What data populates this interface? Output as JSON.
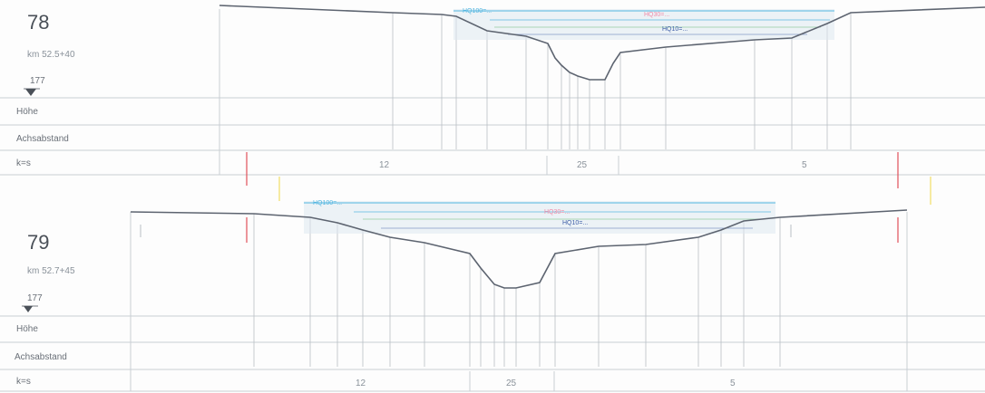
{
  "sections": [
    {
      "number": "78",
      "km": "km 52.5+40",
      "ref_level": "177",
      "row_labels": {
        "height": "Höhe",
        "distance": "Achsabstand",
        "k": "k=s"
      },
      "k_values": [
        "12",
        "25",
        "5"
      ],
      "hw_labels": {
        "hq100": "HQ100=...",
        "hq30": "HQ30=...",
        "hq10": "HQ10=..."
      }
    },
    {
      "number": "79",
      "km": "km 52.7+45",
      "ref_level": "177",
      "row_labels": {
        "height": "Höhe",
        "distance": "Achsabstand",
        "k": "k=s"
      },
      "k_values": [
        "12",
        "25",
        "5"
      ],
      "hw_labels": {
        "hq100": "HQ100=...",
        "hq30": "HQ30=...",
        "hq10": "HQ10=..."
      }
    }
  ],
  "colors": {
    "profile": "#5d6470",
    "grid": "#c9ced4",
    "hq100": "#52b6e0",
    "hq30": "#f08aa8",
    "hq10": "#3f5fa8",
    "marker_red": "#e0505a",
    "marker_yellow": "#f2e27a"
  }
}
